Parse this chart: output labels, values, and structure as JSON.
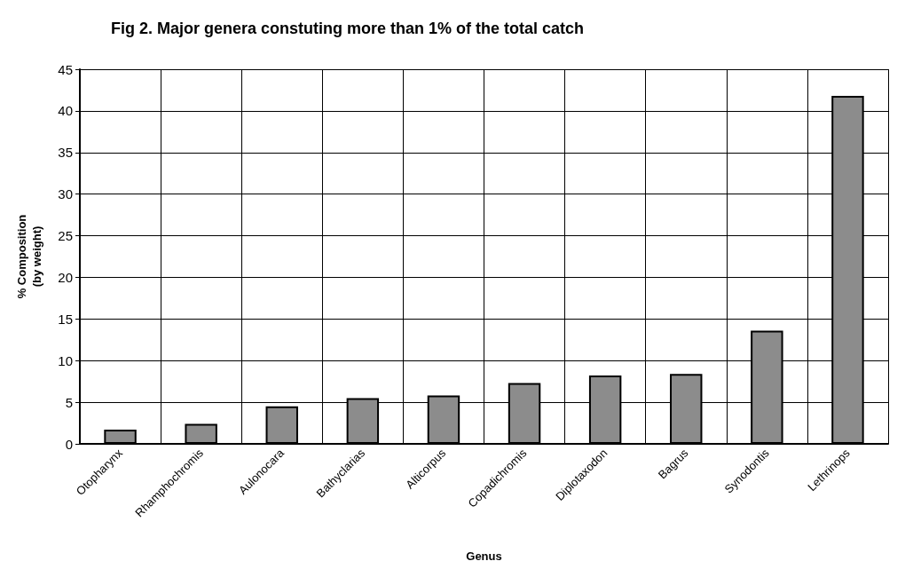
{
  "chart_data": {
    "type": "bar",
    "title": "Fig 2. Major genera constuting more than 1% of the total catch",
    "xlabel": "Genus",
    "ylabel": "% Composition\n(by weight)",
    "categories": [
      "Otopharynx",
      "Rhamphochromis",
      "Aulonocara",
      "Bathyclarias",
      "Alticorpus",
      "Copadichromis",
      "Diplotaxodon",
      "Bagrus",
      "Synodontis",
      "Lethrinops"
    ],
    "values": [
      1.7,
      2.4,
      4.5,
      5.5,
      5.8,
      7.3,
      8.2,
      8.4,
      13.6,
      41.8
    ],
    "color": "#8c8c8c",
    "ylim": [
      0,
      45
    ],
    "yticks": [
      0,
      5,
      10,
      15,
      20,
      25,
      30,
      35,
      40,
      45
    ],
    "grid": true
  }
}
